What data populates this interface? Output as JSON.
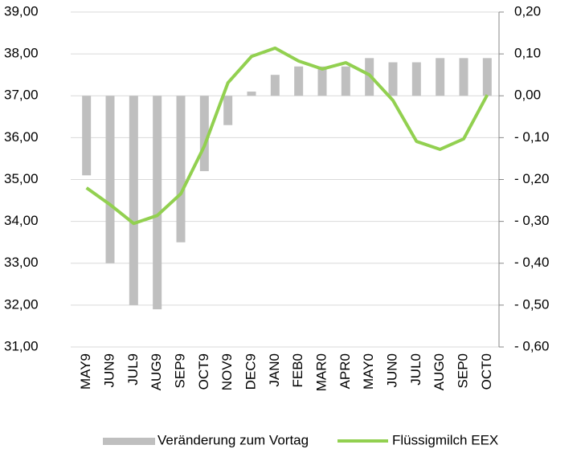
{
  "chart_data": {
    "type": "bar_line",
    "categories": [
      "MAY9",
      "JUN9",
      "JUL9",
      "AUG9",
      "SEP9",
      "OCT9",
      "NOV9",
      "DEC9",
      "JAN0",
      "FEB0",
      "MAR0",
      "APR0",
      "MAY0",
      "JUN0",
      "JUL0",
      "AUG0",
      "SEP0",
      "OCT0"
    ],
    "series": [
      {
        "name": "Veränderung zum Vortag",
        "type": "bar",
        "axis": "y2",
        "color": "#bfbfbf",
        "values": [
          -0.19,
          -0.4,
          -0.5,
          -0.51,
          -0.35,
          -0.18,
          -0.07,
          0.01,
          0.05,
          0.07,
          0.07,
          0.07,
          0.09,
          0.08,
          0.08,
          0.09,
          0.09,
          0.09
        ]
      },
      {
        "name": "Flüssigmilch EEX",
        "type": "line",
        "color": "#92d050",
        "values": [
          34.8,
          34.4,
          33.95,
          34.14,
          34.66,
          35.8,
          37.31,
          37.94,
          38.14,
          37.83,
          37.64,
          37.79,
          37.5,
          36.89,
          35.91,
          35.72,
          35.97,
          37.02
        ]
      }
    ],
    "ylim": [
      31,
      39
    ],
    "yticks": [
      {
        "value": 31,
        "label": "31,00"
      },
      {
        "value": 32,
        "label": "32,00"
      },
      {
        "value": 33,
        "label": "33,00"
      },
      {
        "value": 34,
        "label": "34,00"
      },
      {
        "value": 35,
        "label": "35,00"
      },
      {
        "value": 36,
        "label": "36,00"
      },
      {
        "value": 37,
        "label": "37,00"
      },
      {
        "value": 38,
        "label": "38,00"
      },
      {
        "value": 39,
        "label": "39,00"
      }
    ],
    "y2lim": [
      -0.6,
      0.2
    ],
    "y2ticks": [
      {
        "value": -0.6,
        "label": "- 0,60"
      },
      {
        "value": -0.5,
        "label": "- 0,50"
      },
      {
        "value": -0.4,
        "label": "- 0,40"
      },
      {
        "value": -0.3,
        "label": "- 0,30"
      },
      {
        "value": -0.2,
        "label": "- 0,20"
      },
      {
        "value": -0.1,
        "label": "- 0,10"
      },
      {
        "value": 0,
        "label": "0,00"
      },
      {
        "value": 0.1,
        "label": "0,10"
      },
      {
        "value": 0.2,
        "label": "0,20"
      }
    ],
    "y2tick_color": "#1e9e1e",
    "y2tick_negative_color": "#e00000",
    "grid": true,
    "legend": "bottom"
  }
}
